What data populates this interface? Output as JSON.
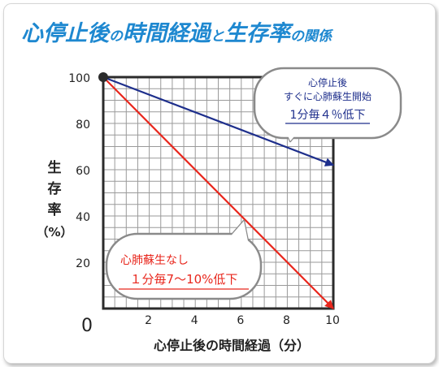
{
  "chart_data": {
    "type": "line",
    "title": {
      "parts": [
        {
          "text": "心停止後",
          "style": "big"
        },
        {
          "text": "の",
          "style": "small"
        },
        {
          "text": "時間経過",
          "style": "big"
        },
        {
          "text": "と",
          "style": "small"
        },
        {
          "text": "生存率",
          "style": "big"
        },
        {
          "text": "の関係",
          "style": "small"
        }
      ]
    },
    "xlabel": "心停止後の時間経過（分）",
    "ylabel": [
      "生",
      "存",
      "率",
      "（%）"
    ],
    "xlim": [
      0,
      10
    ],
    "ylim": [
      0,
      100
    ],
    "x_ticks": [
      {
        "value": 0,
        "label": "0"
      },
      {
        "value": 2,
        "label": "2"
      },
      {
        "value": 4,
        "label": "4"
      },
      {
        "value": 6,
        "label": "6"
      },
      {
        "value": 8,
        "label": "8"
      },
      {
        "value": 10,
        "label": "10"
      }
    ],
    "y_ticks": [
      {
        "value": 20,
        "label": "20"
      },
      {
        "value": 40,
        "label": "40"
      },
      {
        "value": 60,
        "label": "60"
      },
      {
        "value": 80,
        "label": "80"
      },
      {
        "value": 100,
        "label": "100"
      }
    ],
    "grid": true,
    "series": [
      {
        "key": "cpr",
        "color": "#1e2f8c",
        "x": [
          0,
          10
        ],
        "y": [
          100,
          62
        ]
      },
      {
        "key": "no_cpr",
        "color": "#e8261c",
        "x": [
          0,
          10
        ],
        "y": [
          100,
          0
        ]
      }
    ],
    "annotations": [
      {
        "key": "cpr",
        "lines": [
          "心停止後",
          "すぐに心肺蘇生開始",
          "1分毎４％低下"
        ],
        "color": "#1e2f8c"
      },
      {
        "key": "no_cpr",
        "lines": [
          "心肺蘇生なし",
          "１分毎7〜10%低下"
        ],
        "color": "#e8261c"
      }
    ],
    "colors": {
      "title": "#1e88d0",
      "axis": "#2b2b2b",
      "grid": "#9a9a9a",
      "text": "#222222",
      "bubble_border": "#8a8a8a",
      "bubble_fill": "#ffffff",
      "origin_dot": "#2b2b2b"
    }
  }
}
